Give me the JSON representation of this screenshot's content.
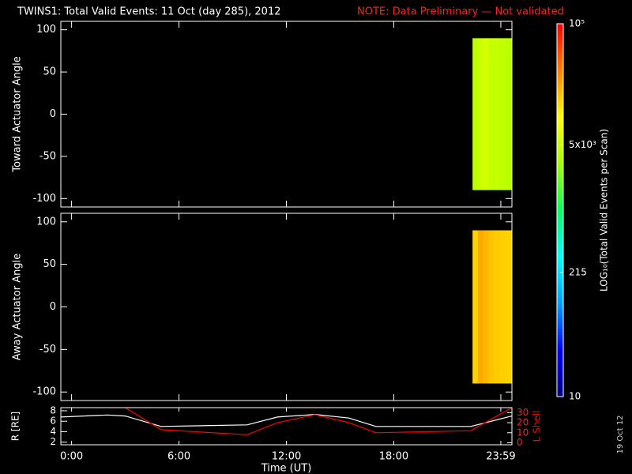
{
  "title": "TWINS1: Total Valid Events: 11 Oct (day 285), 2012",
  "note": "NOTE: Data Preliminary — Not validated",
  "date_stamp": "19 Oct 12",
  "chart_data": [
    {
      "type": "heatmap",
      "y_label": "Toward Actuator Angle",
      "x_bins": [
        22.4,
        22.7,
        23.0,
        23.3,
        23.6,
        23.9,
        24.2,
        24.6
      ],
      "y_bins": [
        -90,
        90
      ],
      "values": [
        [
          4500,
          5200,
          6000,
          4800,
          5000,
          4600,
          4400
        ]
      ],
      "xlim": [
        -0.6,
        24.6
      ],
      "ylim": [
        -110,
        110
      ],
      "yticks": [
        -100,
        -50,
        0,
        50,
        100
      ]
    },
    {
      "type": "heatmap",
      "y_label": "Away Actuator Angle",
      "x_bins": [
        22.4,
        22.7,
        23.0,
        23.3,
        23.6,
        23.9,
        24.2,
        24.6
      ],
      "y_bins": [
        -90,
        90
      ],
      "values": [
        [
          15000,
          22000,
          19000,
          17000,
          16000,
          15500,
          15000
        ]
      ],
      "xlim": [
        -0.6,
        24.6
      ],
      "ylim": [
        -110,
        110
      ],
      "yticks": [
        -100,
        -50,
        0,
        50,
        100
      ]
    },
    {
      "type": "line",
      "x_label": "Time (UT)",
      "x": [
        -0.6,
        2,
        3,
        5,
        9.8,
        11.5,
        13.6,
        15.5,
        17,
        22.3,
        24.6
      ],
      "xlim": [
        -0.6,
        24.6
      ],
      "xticks": [
        {
          "value": 0,
          "label": "0:00"
        },
        {
          "value": 6,
          "label": "6:00"
        },
        {
          "value": 12,
          "label": "12:00"
        },
        {
          "value": 18,
          "label": "18:00"
        },
        {
          "value": 23.98,
          "label": "23:59"
        }
      ],
      "series": [
        {
          "name": "R [RE]",
          "color": "#ffffff",
          "values": [
            6.8,
            7.2,
            7.0,
            5.0,
            5.3,
            6.8,
            7.3,
            6.6,
            5.0,
            5.0,
            7.0
          ]
        },
        {
          "name": "L Shell",
          "color": "#ff0000",
          "axis": "y2",
          "values": [
            null,
            null,
            35,
            13,
            8,
            20,
            28,
            20,
            10,
            12,
            35
          ]
        }
      ],
      "ylim": [
        1.5,
        8.6
      ],
      "yticks": [
        2,
        4,
        6,
        8
      ],
      "y2lim": [
        -2,
        35
      ],
      "y2ticks": [
        0,
        10,
        20,
        30
      ]
    },
    {
      "type": "colorbar",
      "label": "LOG₁₀(Total Valid Events per Scan)",
      "log_scale": true,
      "zlim": [
        10,
        100000
      ],
      "zticks": [
        10,
        215,
        {
          "value": 5000,
          "label": "5x10³"
        },
        {
          "value": 100000,
          "label": "10⁵"
        }
      ],
      "colors": [
        "#000080",
        "#0000ff",
        "#00a0ff",
        "#00ffff",
        "#00ff60",
        "#a0ff00",
        "#ffff00",
        "#ff8000",
        "#ff0000"
      ]
    }
  ]
}
